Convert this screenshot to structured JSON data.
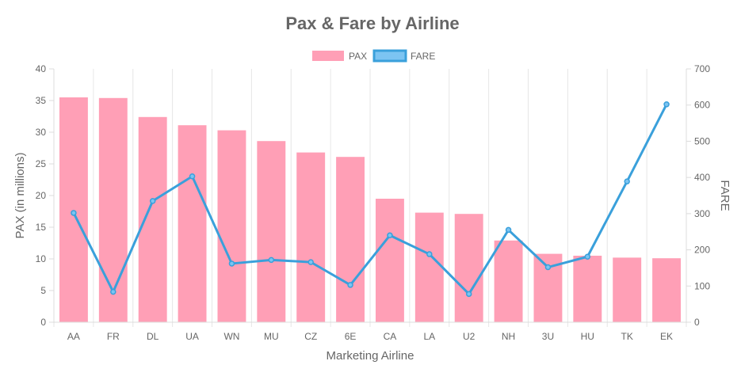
{
  "chart_data": {
    "type": "bar",
    "title": "Pax & Fare by Airline",
    "xlabel": "Marketing Airline",
    "ylabel": "PAX (in millions)",
    "y2label": "FARE",
    "categories": [
      "AA",
      "FR",
      "DL",
      "UA",
      "WN",
      "MU",
      "CZ",
      "6E",
      "CA",
      "LA",
      "U2",
      "NH",
      "3U",
      "HU",
      "TK",
      "EK"
    ],
    "series": [
      {
        "name": "PAX",
        "type": "bar",
        "axis": "left",
        "color": "#ff9fb6",
        "values": [
          35.5,
          35.4,
          32.4,
          31.1,
          30.3,
          28.6,
          26.8,
          26.1,
          19.5,
          17.3,
          17.1,
          12.9,
          10.8,
          10.5,
          10.2,
          10.1
        ]
      },
      {
        "name": "FARE",
        "type": "line",
        "axis": "right",
        "color": "#3aa0db",
        "values": [
          302,
          84,
          335,
          403,
          162,
          172,
          166,
          103,
          240,
          188,
          78,
          255,
          152,
          181,
          389,
          602
        ]
      }
    ],
    "ylim": [
      0,
      40
    ],
    "y_ticks": [
      0,
      5,
      10,
      15,
      20,
      25,
      30,
      35,
      40
    ],
    "y2lim": [
      0,
      700
    ],
    "y2_ticks": [
      0,
      100,
      200,
      300,
      400,
      500,
      600,
      700
    ],
    "legend_position": "top-center",
    "grid": true
  }
}
